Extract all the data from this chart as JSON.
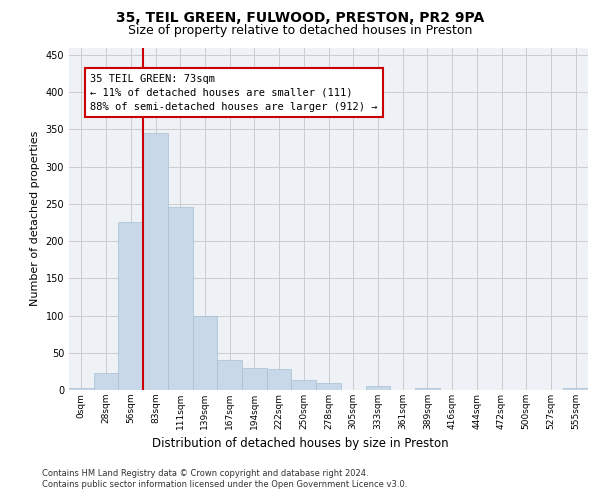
{
  "title1": "35, TEIL GREEN, FULWOOD, PRESTON, PR2 9PA",
  "title2": "Size of property relative to detached houses in Preston",
  "xlabel": "Distribution of detached houses by size in Preston",
  "ylabel": "Number of detached properties",
  "footnote1": "Contains HM Land Registry data © Crown copyright and database right 2024.",
  "footnote2": "Contains public sector information licensed under the Open Government Licence v3.0.",
  "annotation_line1": "35 TEIL GREEN: 73sqm",
  "annotation_line2": "← 11% of detached houses are smaller (111)",
  "annotation_line3": "88% of semi-detached houses are larger (912) →",
  "bar_color": "#c8d8e8",
  "bar_edge_color": "#a8bfd0",
  "grid_color": "#cccccc",
  "vline_color": "#cc0000",
  "vline_x": 2.5,
  "annotation_box_edge_color": "#cc0000",
  "categories": [
    "0sqm",
    "28sqm",
    "56sqm",
    "83sqm",
    "111sqm",
    "139sqm",
    "167sqm",
    "194sqm",
    "222sqm",
    "250sqm",
    "278sqm",
    "305sqm",
    "333sqm",
    "361sqm",
    "389sqm",
    "416sqm",
    "444sqm",
    "472sqm",
    "500sqm",
    "527sqm",
    "555sqm"
  ],
  "bar_heights": [
    3,
    23,
    225,
    345,
    246,
    100,
    40,
    30,
    28,
    13,
    9,
    0,
    5,
    0,
    3,
    0,
    0,
    0,
    0,
    0,
    3
  ],
  "ylim": [
    0,
    460
  ],
  "yticks": [
    0,
    50,
    100,
    150,
    200,
    250,
    300,
    350,
    400,
    450
  ],
  "bg_color": "#eef2f7",
  "title1_fontsize": 10,
  "title2_fontsize": 9,
  "xlabel_fontsize": 8.5,
  "ylabel_fontsize": 8,
  "footnote_fontsize": 6,
  "tick_fontsize": 6.5,
  "annotation_fontsize": 7.5
}
